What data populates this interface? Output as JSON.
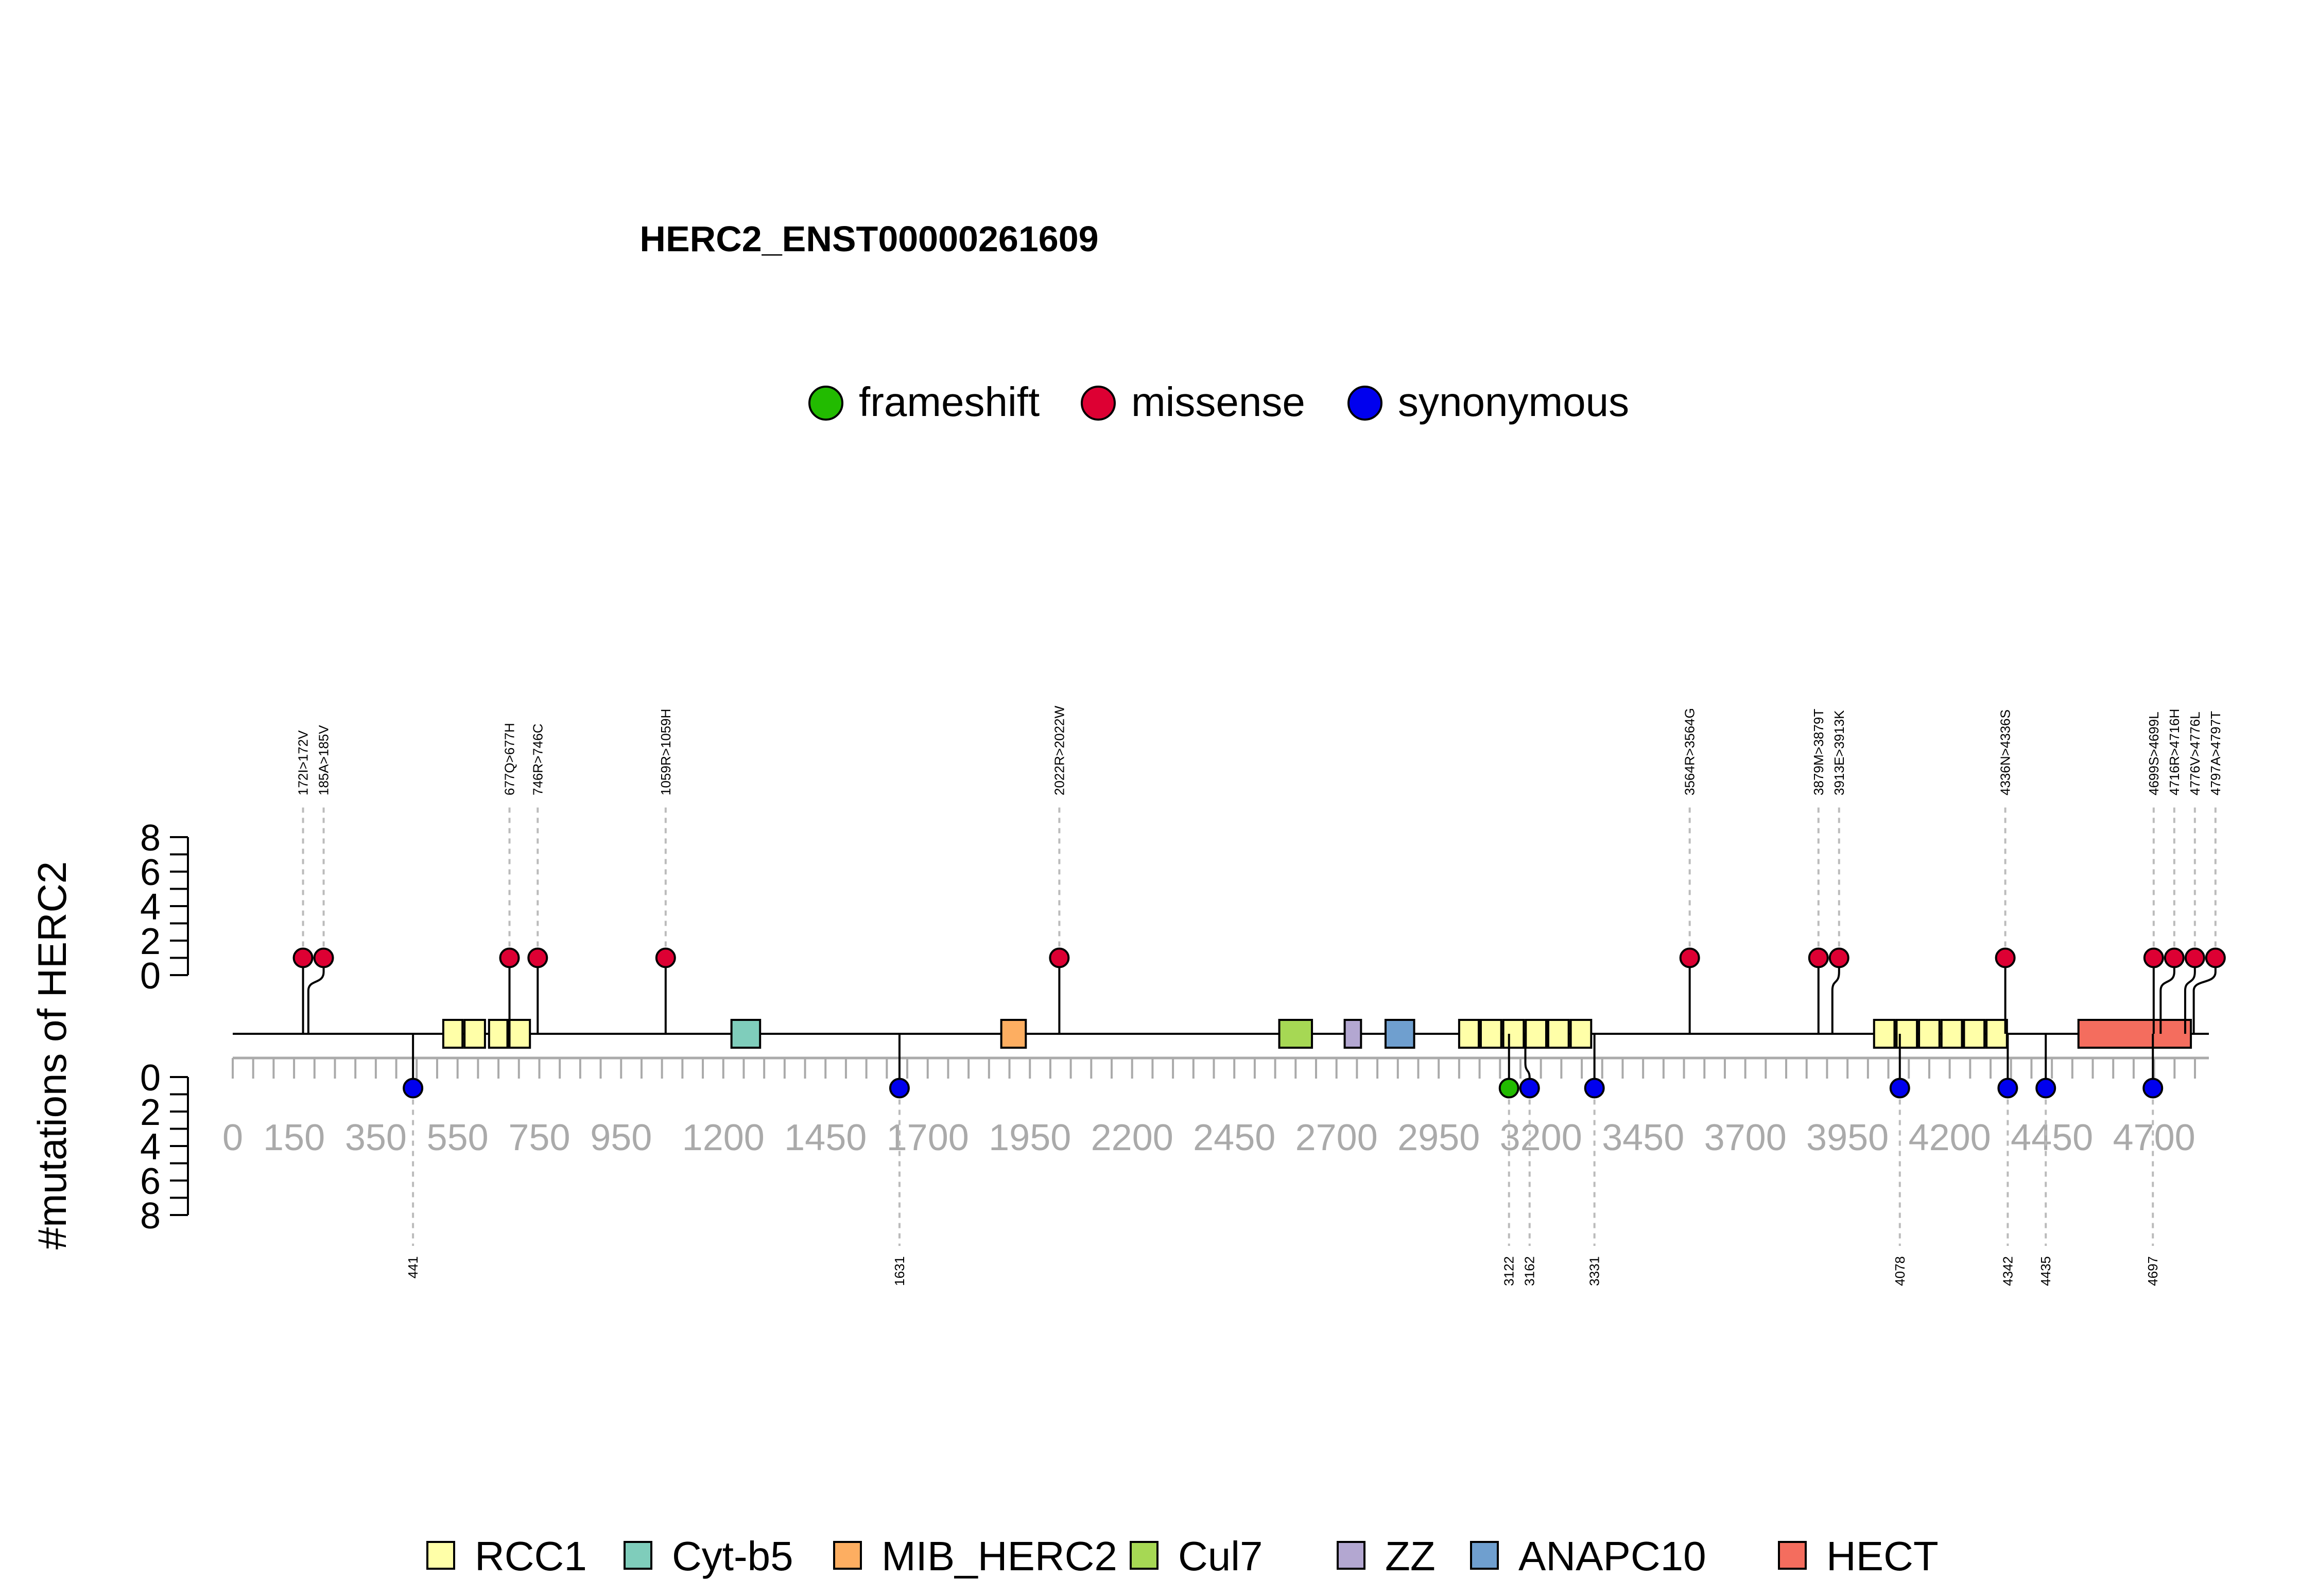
{
  "chart_data": {
    "type": "lollipop",
    "title": "HERC2_ENST00000261609",
    "ylabel": "#mutations of HERC2",
    "protein_length": 4834,
    "xlim": [
      0,
      4834
    ],
    "xticks": [
      0,
      150,
      350,
      550,
      750,
      950,
      1200,
      1450,
      1700,
      1950,
      2200,
      2450,
      2700,
      2950,
      3200,
      3450,
      3700,
      3950,
      4200,
      4450,
      4700
    ],
    "yticks": [
      0,
      2,
      4,
      6,
      8
    ],
    "ylim": [
      0,
      8
    ],
    "mutation_types": [
      {
        "name": "frameshift",
        "color": "#22bb00"
      },
      {
        "name": "missense",
        "color": "#dd0033"
      },
      {
        "name": "synonymous",
        "color": "#0000ee"
      }
    ],
    "domains": [
      {
        "name": "RCC1",
        "color": "#ffffa8",
        "regions": [
          [
            515,
            562
          ],
          [
            567,
            617
          ],
          [
            627,
            672
          ],
          [
            677,
            727
          ],
          [
            3000,
            3048
          ],
          [
            3053,
            3103
          ],
          [
            3108,
            3158
          ],
          [
            3163,
            3213
          ],
          [
            3218,
            3268
          ],
          [
            3273,
            3323
          ],
          [
            4015,
            4065
          ],
          [
            4070,
            4120
          ],
          [
            4125,
            4175
          ],
          [
            4180,
            4230
          ],
          [
            4235,
            4285
          ],
          [
            4290,
            4340
          ]
        ]
      },
      {
        "name": "Cyt-b5",
        "color": "#7fcdbb",
        "regions": [
          [
            1220,
            1290
          ]
        ]
      },
      {
        "name": "MIB_HERC2",
        "color": "#fdae61",
        "regions": [
          [
            1880,
            1940
          ]
        ]
      },
      {
        "name": "Cul7",
        "color": "#a6d854",
        "regions": [
          [
            2560,
            2640
          ]
        ]
      },
      {
        "name": "ZZ",
        "color": "#b3a7d1",
        "regions": [
          [
            2720,
            2760
          ]
        ]
      },
      {
        "name": "ANAPC10",
        "color": "#6f9fcf",
        "regions": [
          [
            2820,
            2890
          ]
        ]
      },
      {
        "name": "HECT",
        "color": "#f46d5e",
        "regions": [
          [
            4515,
            4790
          ]
        ]
      }
    ],
    "top_mutations": [
      {
        "pos": 172,
        "label": "172I>172V",
        "count": 1,
        "type": "missense"
      },
      {
        "pos": 185,
        "label": "185A>185V",
        "count": 1,
        "type": "missense"
      },
      {
        "pos": 677,
        "label": "677Q>677H",
        "count": 1,
        "type": "missense"
      },
      {
        "pos": 746,
        "label": "746R>746C",
        "count": 1,
        "type": "missense"
      },
      {
        "pos": 1059,
        "label": "1059R>1059H",
        "count": 1,
        "type": "missense"
      },
      {
        "pos": 2022,
        "label": "2022R>2022W",
        "count": 1,
        "type": "missense"
      },
      {
        "pos": 3564,
        "label": "3564R>3564G",
        "count": 1,
        "type": "missense"
      },
      {
        "pos": 3879,
        "label": "3879M>3879T",
        "count": 1,
        "type": "missense"
      },
      {
        "pos": 3913,
        "label": "3913E>3913K",
        "count": 1,
        "type": "missense"
      },
      {
        "pos": 4336,
        "label": "4336N>4336S",
        "count": 1,
        "type": "missense"
      },
      {
        "pos": 4699,
        "label": "4699S>4699L",
        "count": 1,
        "type": "missense"
      },
      {
        "pos": 4716,
        "label": "4716R>4716H",
        "count": 1,
        "type": "missense"
      },
      {
        "pos": 4776,
        "label": "4776V>4776L",
        "count": 1,
        "type": "missense"
      },
      {
        "pos": 4797,
        "label": "4797A>4797T",
        "count": 1,
        "type": "missense"
      }
    ],
    "bottom_mutations": [
      {
        "pos": 441,
        "label": "441",
        "count": 1,
        "type": "synonymous"
      },
      {
        "pos": 1631,
        "label": "1631",
        "count": 1,
        "type": "synonymous"
      },
      {
        "pos": 3122,
        "label": "3122",
        "count": 1,
        "type": "frameshift"
      },
      {
        "pos": 3162,
        "label": "3162",
        "count": 1,
        "type": "synonymous"
      },
      {
        "pos": 3331,
        "label": "3331",
        "count": 1,
        "type": "synonymous"
      },
      {
        "pos": 4078,
        "label": "4078",
        "count": 1,
        "type": "synonymous"
      },
      {
        "pos": 4342,
        "label": "4342",
        "count": 1,
        "type": "synonymous"
      },
      {
        "pos": 4435,
        "label": "4435",
        "count": 1,
        "type": "synonymous"
      },
      {
        "pos": 4697,
        "label": "4697",
        "count": 1,
        "type": "synonymous"
      }
    ]
  }
}
